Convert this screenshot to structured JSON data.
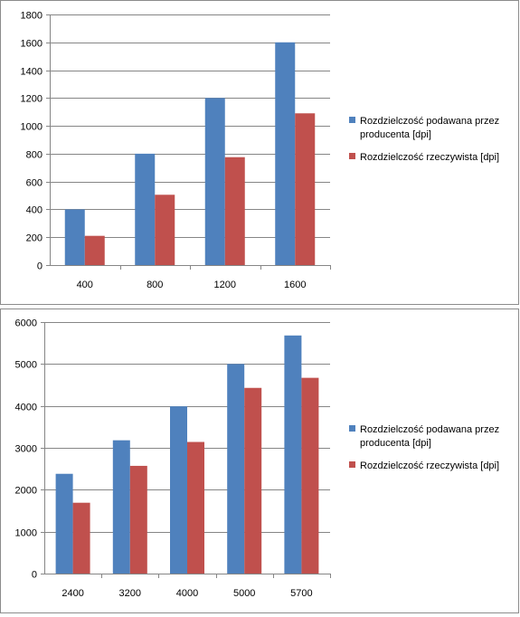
{
  "chart_data": [
    {
      "type": "bar",
      "categories": [
        "400",
        "800",
        "1200",
        "1600"
      ],
      "series": [
        {
          "name": "Rozdzielczość podawana  przez producenta [dpi]",
          "values": [
            400,
            800,
            1200,
            1600
          ],
          "color": "#4F81BD"
        },
        {
          "name": "Rozdzielczość rzeczywista  [dpi]",
          "values": [
            210,
            505,
            775,
            1090
          ],
          "color": "#C0504D"
        }
      ],
      "title": "",
      "xlabel": "",
      "ylabel": "",
      "ylim": [
        0,
        1800
      ],
      "yticks": [
        "0",
        "200",
        "400",
        "600",
        "800",
        "1000",
        "1200",
        "1400",
        "1600",
        "1800"
      ],
      "grid": true,
      "legend": "right",
      "legend_lines": [
        [
          "Rozdzielczość podawana  przez",
          "producenta [dpi]"
        ],
        [
          "Rozdzielczość rzeczywista  [dpi]"
        ]
      ]
    },
    {
      "type": "bar",
      "categories": [
        "2400",
        "3200",
        "4000",
        "5000",
        "5700"
      ],
      "series": [
        {
          "name": "Rozdzielczość podawana  przez producenta [dpi]",
          "values": [
            2380,
            3180,
            3990,
            5000,
            5680
          ],
          "color": "#4F81BD"
        },
        {
          "name": "Rozdzielczość rzeczywista  [dpi]",
          "values": [
            1690,
            2570,
            3140,
            4430,
            4670
          ],
          "color": "#C0504D"
        }
      ],
      "title": "",
      "xlabel": "",
      "ylabel": "",
      "ylim": [
        0,
        6000
      ],
      "yticks": [
        "0",
        "1000",
        "2000",
        "3000",
        "4000",
        "5000",
        "6000"
      ],
      "grid": true,
      "legend": "right",
      "legend_lines": [
        [
          "Rozdzielczość podawana  przez",
          "producenta [dpi]"
        ],
        [
          "Rozdzielczość rzeczywista  [dpi]"
        ]
      ]
    }
  ]
}
